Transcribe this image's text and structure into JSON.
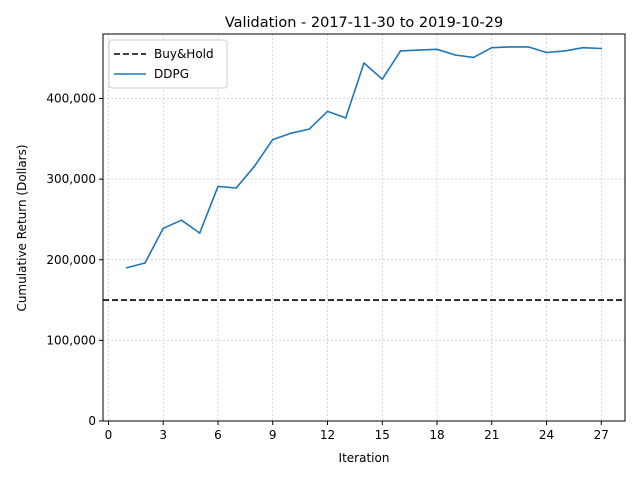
{
  "chart_data": {
    "type": "line",
    "title": "Validation - 2017-11-30 to 2019-10-29",
    "xlabel": "Iteration",
    "ylabel": "Cumulative Return (Dollars)",
    "xlim": [
      -0.3,
      28.3
    ],
    "ylim": [
      0,
      480000
    ],
    "xticks": [
      0,
      3,
      6,
      9,
      12,
      15,
      18,
      21,
      24,
      27
    ],
    "yticks": [
      0,
      100000,
      200000,
      300000,
      400000
    ],
    "ytick_labels": [
      "0",
      "100,000",
      "200,000",
      "300,000",
      "400,000"
    ],
    "grid": true,
    "legend_position": "top-left",
    "series": [
      {
        "name": "Buy&Hold",
        "style": "dashed",
        "color": "#000000",
        "kind": "hline",
        "y": 150000
      },
      {
        "name": "DDPG",
        "style": "solid",
        "color": "#1f77b4",
        "x": [
          1,
          2,
          3,
          4,
          5,
          6,
          7,
          8,
          9,
          10,
          11,
          12,
          13,
          14,
          15,
          16,
          17,
          18,
          19,
          20,
          21,
          22,
          23,
          24,
          25,
          26,
          27
        ],
        "values": [
          190000,
          196000,
          239000,
          249000,
          233000,
          291000,
          289000,
          316000,
          349000,
          357000,
          362000,
          384000,
          376000,
          444000,
          424000,
          459000,
          460000,
          461000,
          454000,
          451000,
          463000,
          464000,
          464000,
          457000,
          459000,
          463000,
          462000
        ]
      }
    ]
  }
}
